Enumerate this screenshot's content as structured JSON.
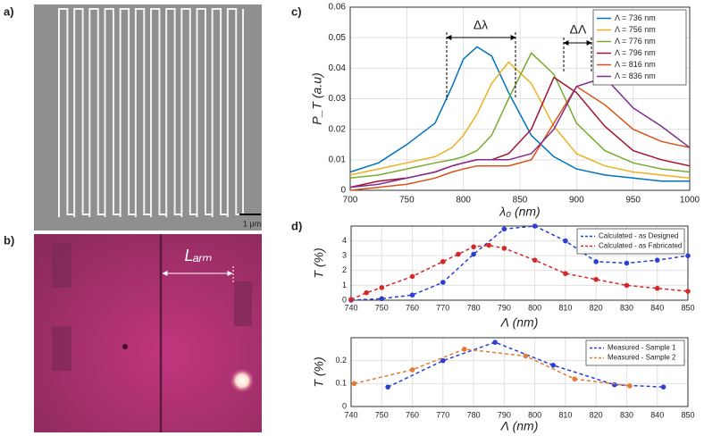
{
  "panel_labels": [
    "a)",
    "b)",
    "c)",
    "d)"
  ],
  "scale_bar": "1 μm",
  "arm_label": "Lₐᵣₘ",
  "chart_data": [
    {
      "type": "line",
      "xlabel": "λ₀ (nm)",
      "ylabel": "P_T (a.u)",
      "annotations": [
        "Δλ",
        "ΔΛ"
      ],
      "xlim": [
        700,
        1000
      ],
      "ylim": [
        0,
        0.06
      ],
      "xticks": [
        700,
        750,
        800,
        850,
        900,
        950,
        1000
      ],
      "yticks": [
        0,
        0.01,
        0.02,
        0.03,
        0.04,
        0.05,
        0.06
      ],
      "grid": true,
      "legend": "upper right",
      "linestyle": "solid",
      "markers": false,
      "series": [
        {
          "name": "Λ = 736 nm",
          "color": "#0072bd",
          "x": [
            700,
            725,
            750,
            775,
            790,
            800,
            812,
            825,
            840,
            860,
            880,
            900,
            925,
            950,
            975,
            1000
          ],
          "values": [
            0.006,
            0.009,
            0.015,
            0.022,
            0.034,
            0.043,
            0.047,
            0.044,
            0.032,
            0.018,
            0.011,
            0.007,
            0.005,
            0.004,
            0.003,
            0.003
          ]
        },
        {
          "name": "Λ = 756 nm",
          "color": "#edb120",
          "x": [
            700,
            725,
            750,
            775,
            790,
            800,
            812,
            825,
            840,
            860,
            880,
            900,
            925,
            950,
            975,
            1000
          ],
          "values": [
            0.005,
            0.007,
            0.009,
            0.011,
            0.014,
            0.018,
            0.025,
            0.035,
            0.042,
            0.035,
            0.021,
            0.012,
            0.008,
            0.006,
            0.005,
            0.004
          ]
        },
        {
          "name": "Λ = 776 nm",
          "color": "#77ac30",
          "x": [
            700,
            725,
            750,
            775,
            790,
            800,
            812,
            825,
            840,
            860,
            880,
            900,
            925,
            950,
            975,
            1000
          ],
          "values": [
            0.004,
            0.005,
            0.007,
            0.009,
            0.01,
            0.011,
            0.013,
            0.018,
            0.03,
            0.045,
            0.038,
            0.022,
            0.013,
            0.009,
            0.007,
            0.006
          ]
        },
        {
          "name": "Λ = 796 nm",
          "color": "#a2142f",
          "x": [
            700,
            725,
            750,
            775,
            790,
            800,
            812,
            825,
            840,
            860,
            880,
            900,
            925,
            950,
            975,
            1000
          ],
          "values": [
            0.001,
            0.003,
            0.004,
            0.006,
            0.008,
            0.009,
            0.01,
            0.01,
            0.012,
            0.02,
            0.037,
            0.032,
            0.021,
            0.013,
            0.01,
            0.008
          ]
        },
        {
          "name": "Λ = 816 nm",
          "color": "#d95319",
          "x": [
            700,
            725,
            750,
            775,
            790,
            800,
            812,
            825,
            840,
            860,
            880,
            900,
            925,
            950,
            975,
            1000
          ],
          "values": [
            0.0,
            0.001,
            0.002,
            0.004,
            0.006,
            0.007,
            0.008,
            0.008,
            0.008,
            0.01,
            0.022,
            0.034,
            0.028,
            0.02,
            0.016,
            0.014
          ]
        },
        {
          "name": "Λ = 836 nm",
          "color": "#7e2f8e",
          "x": [
            700,
            725,
            750,
            775,
            790,
            800,
            812,
            825,
            840,
            860,
            880,
            900,
            925,
            950,
            975,
            1000
          ],
          "values": [
            0.001,
            0.002,
            0.004,
            0.006,
            0.008,
            0.009,
            0.01,
            0.01,
            0.01,
            0.012,
            0.02,
            0.034,
            0.037,
            0.027,
            0.021,
            0.014
          ]
        }
      ]
    },
    {
      "type": "line",
      "xlabel": "Λ (nm)",
      "ylabel": "T (%)",
      "xlim": [
        740,
        850
      ],
      "ylim": [
        0,
        5
      ],
      "xticks": [
        740,
        750,
        760,
        770,
        780,
        790,
        800,
        810,
        820,
        830,
        840,
        850
      ],
      "yticks": [
        0,
        1,
        2,
        3,
        4
      ],
      "grid": true,
      "legend": "upper right",
      "linestyle": "dashed",
      "markers": true,
      "series": [
        {
          "name": "Calculated - as Designed",
          "color": "#2b3fd1",
          "x": [
            740,
            750,
            760,
            770,
            780,
            790,
            800,
            810,
            820,
            830,
            840,
            850
          ],
          "values": [
            0,
            0.1,
            0.35,
            1.2,
            3.1,
            4.8,
            5.0,
            4.0,
            2.6,
            2.5,
            2.7,
            3.0
          ]
        },
        {
          "name": "Calculated - as Fabricated",
          "color": "#d62728",
          "x": [
            740,
            745,
            750,
            760,
            770,
            775,
            780,
            785,
            790,
            800,
            810,
            820,
            830,
            840,
            850
          ],
          "values": [
            0.05,
            0.5,
            0.85,
            1.6,
            2.6,
            3.1,
            3.6,
            3.7,
            3.5,
            2.7,
            1.8,
            1.4,
            1.0,
            0.8,
            0.6
          ]
        }
      ]
    },
    {
      "type": "line",
      "xlabel": "Λ (nm)",
      "ylabel": "T (%)",
      "xlim": [
        740,
        850
      ],
      "ylim": [
        0,
        0.3
      ],
      "xticks": [
        740,
        750,
        760,
        770,
        780,
        790,
        800,
        810,
        820,
        830,
        840,
        850
      ],
      "yticks": [
        0,
        0.1,
        0.2
      ],
      "grid": true,
      "legend": "upper right",
      "linestyle": "dashed",
      "markers": true,
      "series": [
        {
          "name": "Measured - Sample 1",
          "color": "#2b3fd1",
          "x": [
            752,
            770,
            787,
            806,
            826,
            842
          ],
          "values": [
            0.085,
            0.2,
            0.28,
            0.18,
            0.095,
            0.085
          ]
        },
        {
          "name": "Measured - Sample 2",
          "color": "#e07b39",
          "x": [
            741,
            760,
            777,
            797,
            813,
            831
          ],
          "values": [
            0.1,
            0.16,
            0.25,
            0.22,
            0.12,
            0.09
          ]
        }
      ]
    }
  ]
}
